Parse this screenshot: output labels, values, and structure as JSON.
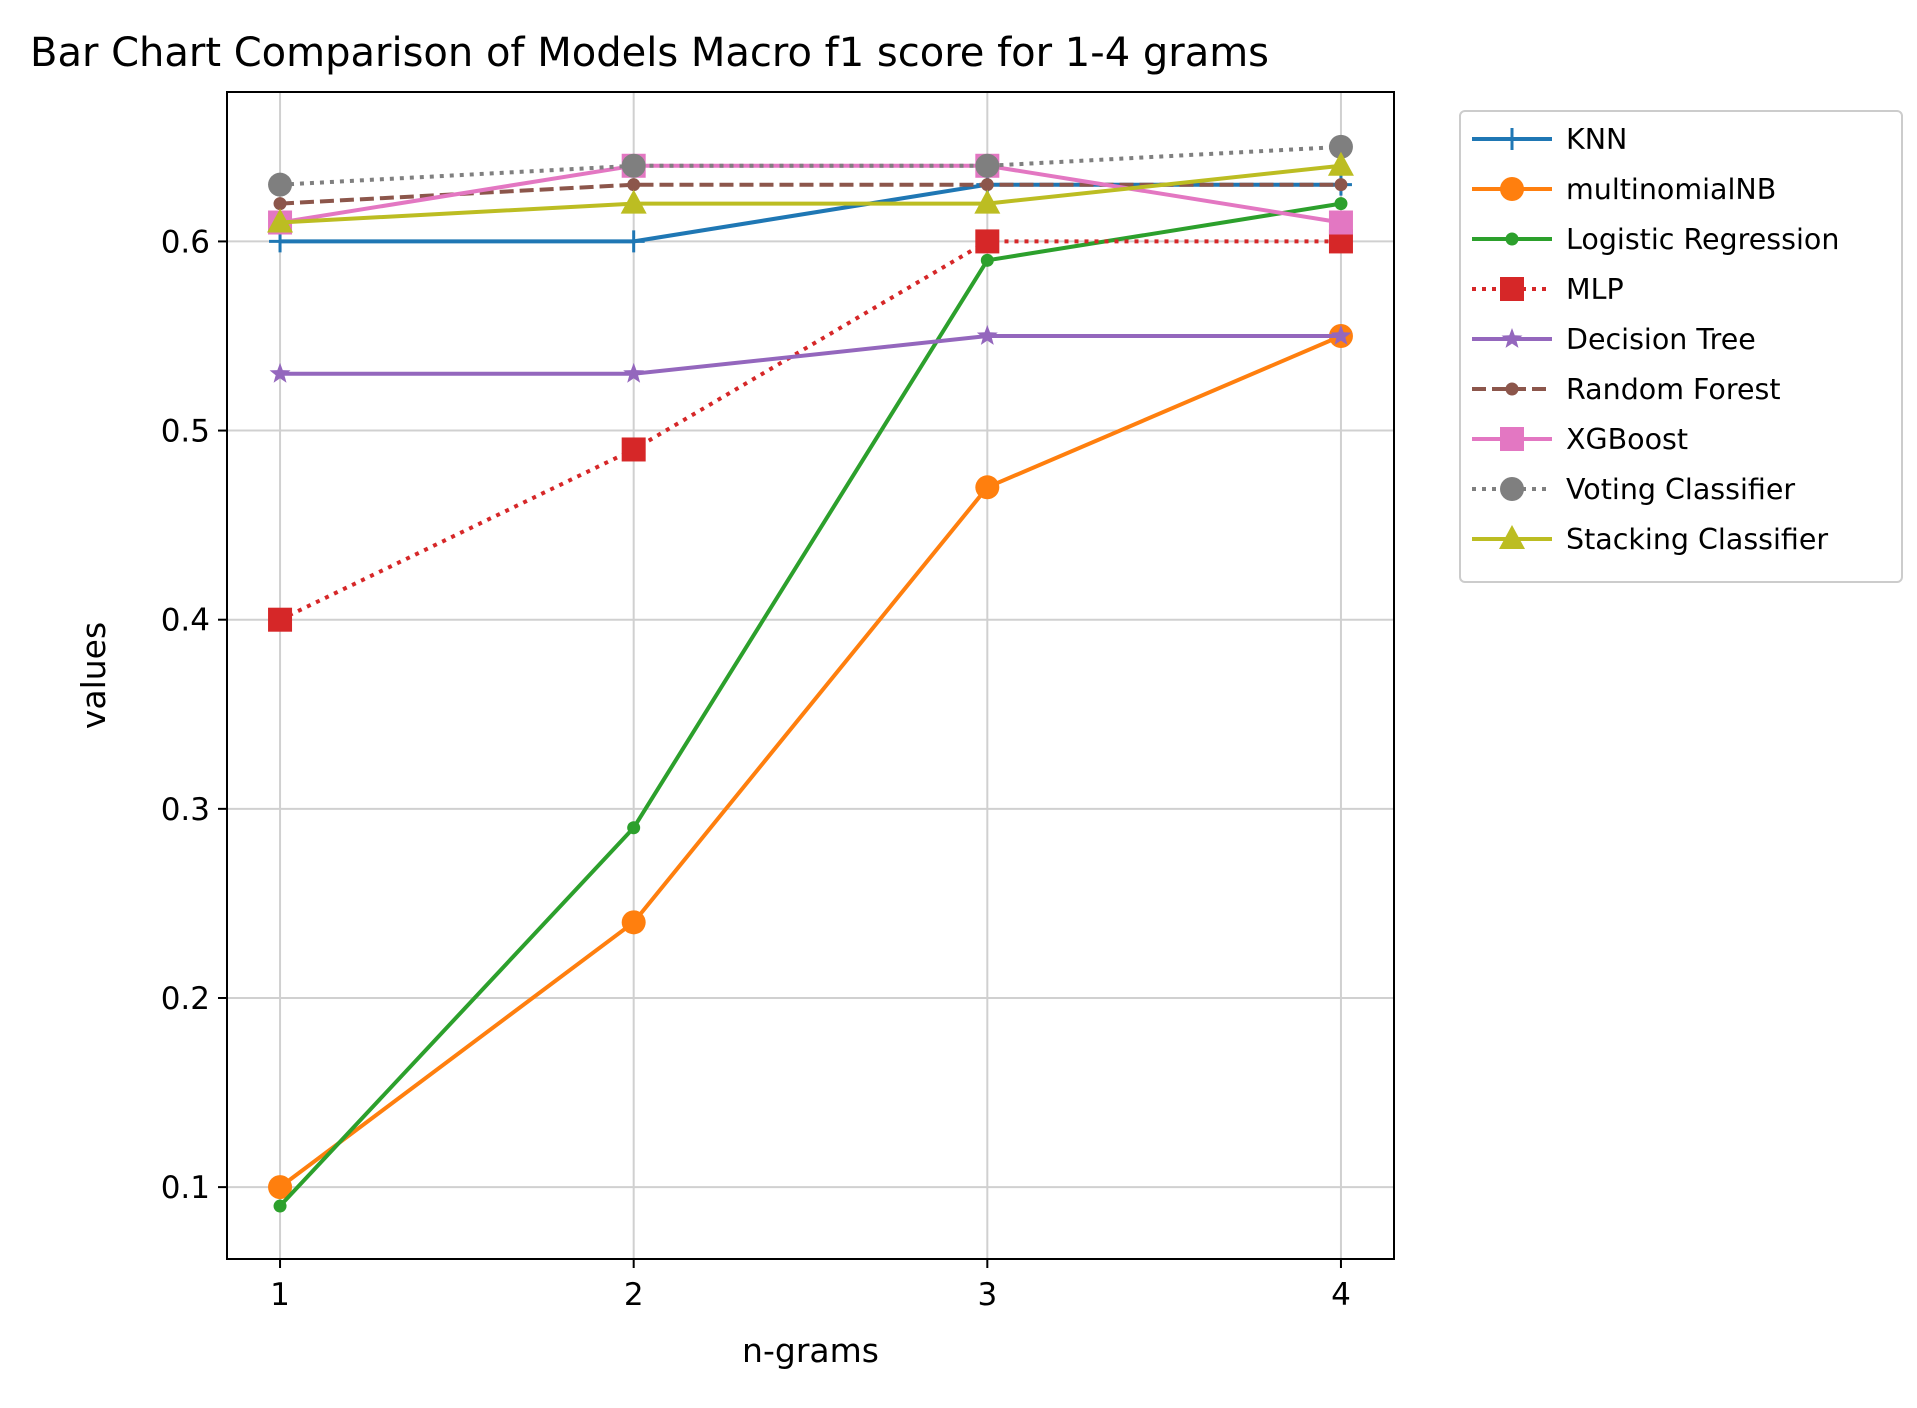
{
  "chart_data": {
    "type": "line",
    "title": "Bar Chart Comparison of Models Macro f1 score for 1-4 grams",
    "xlabel": "n-grams",
    "ylabel": "values",
    "x": [
      1,
      2,
      3,
      4
    ],
    "xlim": [
      0.85,
      4.15
    ],
    "ylim": [
      0.062,
      0.679
    ],
    "xticks": [
      "1",
      "2",
      "3",
      "4"
    ],
    "yticks": [
      "0.1",
      "0.2",
      "0.3",
      "0.4",
      "0.5",
      "0.6"
    ],
    "grid": true,
    "legend_position": "outside-right-top",
    "series": [
      {
        "name": "KNN",
        "values": [
          0.6,
          0.6,
          0.63,
          0.63
        ],
        "color": "#1f77b4",
        "marker": "plus",
        "linestyle": "solid"
      },
      {
        "name": "multinomialNB",
        "values": [
          0.1,
          0.24,
          0.47,
          0.55
        ],
        "color": "#ff7f0e",
        "marker": "circle",
        "linestyle": "solid"
      },
      {
        "name": "Logistic Regression",
        "values": [
          0.09,
          0.29,
          0.59,
          0.62
        ],
        "color": "#2ca02c",
        "marker": "dot",
        "linestyle": "solid"
      },
      {
        "name": "MLP",
        "values": [
          0.4,
          0.49,
          0.6,
          0.6
        ],
        "color": "#d62728",
        "marker": "square",
        "linestyle": "dotted"
      },
      {
        "name": "Decision Tree",
        "values": [
          0.53,
          0.53,
          0.55,
          0.55
        ],
        "color": "#9467bd",
        "marker": "star",
        "linestyle": "solid"
      },
      {
        "name": "Random Forest",
        "values": [
          0.62,
          0.63,
          0.63,
          0.63
        ],
        "color": "#8c564b",
        "marker": "dot",
        "linestyle": "dashed"
      },
      {
        "name": "XGBoost",
        "values": [
          0.61,
          0.64,
          0.64,
          0.61
        ],
        "color": "#e377c2",
        "marker": "square",
        "linestyle": "solid"
      },
      {
        "name": "Voting Classifier",
        "values": [
          0.63,
          0.64,
          0.64,
          0.65
        ],
        "color": "#7f7f7f",
        "marker": "circle",
        "linestyle": "dotted"
      },
      {
        "name": "Stacking Classifier",
        "values": [
          0.61,
          0.62,
          0.62,
          0.64
        ],
        "color": "#bcbd22",
        "marker": "triangle",
        "linestyle": "solid"
      }
    ]
  }
}
